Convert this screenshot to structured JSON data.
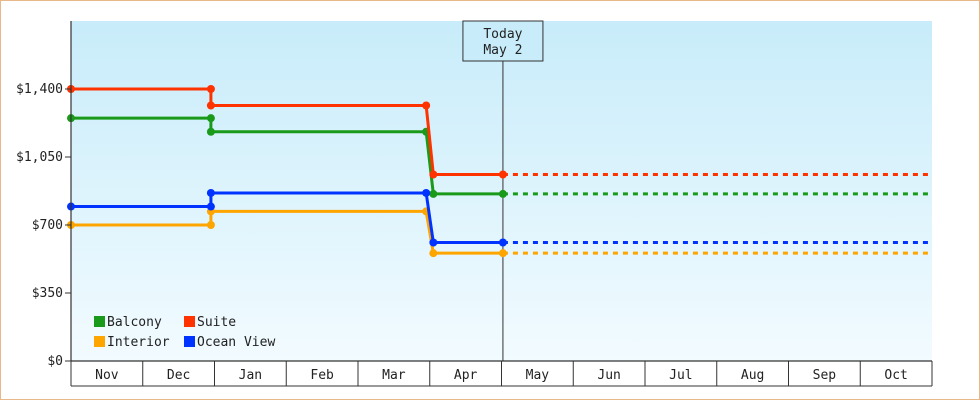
{
  "chart_data": {
    "type": "line",
    "step": true,
    "title": "",
    "xlabel": "",
    "ylabel": "",
    "months": [
      "Nov",
      "Dec",
      "Jan",
      "Feb",
      "Mar",
      "Apr",
      "May",
      "Jun",
      "Jul",
      "Aug",
      "Sep",
      "Oct"
    ],
    "ylim": [
      0,
      1750
    ],
    "yticks": [
      0,
      350,
      700,
      1050,
      1400
    ],
    "ytick_labels": [
      "$0",
      "$350",
      "$700",
      "$1,050",
      "$1,400"
    ],
    "today": {
      "line1": "Today",
      "line2": "May 2",
      "x": 6.02
    },
    "grid": false,
    "legend_position": "bottom-left",
    "series": [
      {
        "name": "Balcony",
        "color": "#1a9a1a",
        "points": [
          [
            0,
            1250
          ],
          [
            1.95,
            1250
          ],
          [
            1.95,
            1180
          ],
          [
            4.95,
            1180
          ],
          [
            5.05,
            860
          ],
          [
            6.02,
            860
          ]
        ],
        "forecast": 860
      },
      {
        "name": "Suite",
        "color": "#ff3300",
        "points": [
          [
            0,
            1400
          ],
          [
            1.95,
            1400
          ],
          [
            1.95,
            1315
          ],
          [
            4.95,
            1315
          ],
          [
            5.05,
            960
          ],
          [
            6.02,
            960
          ]
        ],
        "forecast": 960
      },
      {
        "name": "Interior",
        "color": "#ffa500",
        "points": [
          [
            0,
            700
          ],
          [
            1.95,
            700
          ],
          [
            1.95,
            770
          ],
          [
            4.95,
            770
          ],
          [
            5.05,
            555
          ],
          [
            6.02,
            555
          ]
        ],
        "forecast": 555
      },
      {
        "name": "Ocean View",
        "color": "#0033ff",
        "points": [
          [
            0,
            795
          ],
          [
            1.95,
            795
          ],
          [
            1.95,
            865
          ],
          [
            4.95,
            865
          ],
          [
            5.05,
            610
          ],
          [
            6.02,
            610
          ]
        ],
        "forecast": 610
      }
    ]
  }
}
